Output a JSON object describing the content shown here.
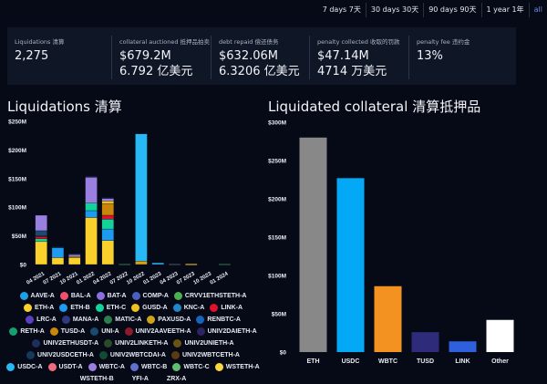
{
  "range_filter": {
    "options": [
      "7 days 7天",
      "30 days 30天",
      "90 days 90天",
      "1 year 1年",
      "all"
    ],
    "active": "all"
  },
  "stats": [
    {
      "label": "Liquidations 清算",
      "value": "2,275"
    },
    {
      "label": "collateral auctioned 抵押品拍卖",
      "value": "$679.2M 6.792 亿美元"
    },
    {
      "label": "debt repaid 偿还债务",
      "value": "$632.06M 6.3206 亿美元"
    },
    {
      "label": "penalty collected 收取的罚款",
      "value": "$47.14M 4714 万美元"
    },
    {
      "label": "penalty fee 违约金",
      "value": "13%"
    }
  ],
  "left_panel": {
    "title": "Liquidations 清算"
  },
  "right_panel": {
    "title": "Liquidated collateral 清算抵押品"
  },
  "chart_data": [
    {
      "type": "bar",
      "stacked": true,
      "title": "Liquidations 清算",
      "ylim": [
        0,
        250
      ],
      "yticks": [
        "$0",
        "$50M",
        "$100M",
        "$150M",
        "$200M",
        "$250M"
      ],
      "ytick_values": [
        0,
        50,
        100,
        150,
        200,
        250
      ],
      "categories": [
        "04 2021",
        "07 2021",
        "10 2021",
        "01 2022",
        "04 2022",
        "07 2022",
        "10 2022",
        "01 2023",
        "04 2023",
        "07 2023",
        "10 2023",
        "01 2024"
      ],
      "xtick_labels": [
        "04 2021",
        "07 2021",
        "10 2021",
        "01 2022",
        "04 2022",
        "07 2022",
        "10 2022",
        "01 2023",
        "04 2023",
        "07 2023",
        "10 2023",
        "01 2024"
      ],
      "series": [
        {
          "name": "ETH-A",
          "color": "#fad02c",
          "values": [
            40,
            12,
            12,
            82,
            42,
            0,
            0,
            0,
            0,
            1,
            0,
            0
          ]
        },
        {
          "name": "ETH-B",
          "color": "#1d9bf0",
          "values": [
            0,
            18,
            0,
            12,
            20,
            0,
            0,
            0,
            0,
            0,
            0,
            0
          ]
        },
        {
          "name": "ETH-C",
          "color": "#12d49a",
          "values": [
            5,
            0,
            0,
            13,
            17,
            0,
            0,
            0,
            0,
            0,
            0,
            0
          ]
        },
        {
          "name": "LINK-A",
          "color": "#e0112b",
          "values": [
            3,
            0,
            0,
            0,
            7,
            0,
            0,
            0,
            0,
            0,
            0,
            0
          ]
        },
        {
          "name": "UNIV2AAVEETH-A",
          "color": "#8b1a2a",
          "values": [
            2,
            0,
            0,
            0,
            0,
            0,
            0,
            0,
            0,
            0,
            0,
            0
          ]
        },
        {
          "name": "UNI-A",
          "color": "#1a4a6e",
          "values": [
            9,
            0,
            0,
            0,
            0,
            0,
            0,
            0,
            0,
            0,
            0,
            0
          ]
        },
        {
          "name": "TUSD-A",
          "color": "#c8860a",
          "values": [
            0,
            0,
            0,
            0,
            20,
            0,
            0,
            0,
            0,
            0,
            0,
            0
          ]
        },
        {
          "name": "PAXUSD-A",
          "color": "#d0a418",
          "values": [
            0,
            0,
            2,
            0,
            0,
            0,
            6,
            0,
            0,
            0,
            0,
            0
          ]
        },
        {
          "name": "GUSD-A",
          "color": "#f0c020",
          "values": [
            0,
            0,
            0,
            0,
            5,
            0,
            0,
            0,
            0,
            0,
            0,
            0
          ]
        },
        {
          "name": "WBTC-A",
          "color": "#9b7fe0",
          "values": [
            27,
            0,
            4,
            46,
            5,
            0,
            0,
            0,
            0,
            0,
            0,
            0
          ]
        },
        {
          "name": "USDC-A",
          "color": "#28b8f5",
          "values": [
            0,
            0,
            0,
            0,
            0,
            0,
            222,
            3,
            0,
            0,
            0,
            0
          ]
        },
        {
          "name": "MATIC-A",
          "color": "#2e7d4f",
          "values": [
            0,
            0,
            0,
            0,
            0,
            1,
            0,
            0,
            0,
            0,
            0,
            1
          ]
        },
        {
          "name": "WSTETH-B",
          "color": "#555a66",
          "values": [
            0,
            0,
            0,
            0,
            0,
            0,
            0,
            0,
            1,
            0,
            0,
            0
          ]
        },
        {
          "name": "UNIV2ETHUSDT-A",
          "color": "#1f2d5c",
          "values": [
            0,
            1,
            1,
            1,
            1,
            0,
            0,
            0,
            0,
            0,
            0,
            0
          ]
        }
      ],
      "legend": [
        {
          "name": "AAVE-A",
          "color": "#1ea0e8"
        },
        {
          "name": "BAL-A",
          "color": "#f0506e"
        },
        {
          "name": "BAT-A",
          "color": "#8a6fe0"
        },
        {
          "name": "COMP-A",
          "color": "#4a5fc0"
        },
        {
          "name": "CRVV1ETHSTETH-A",
          "color": "#4caf50"
        },
        {
          "name": "ETH-A",
          "color": "#fad02c"
        },
        {
          "name": "ETH-B",
          "color": "#1d9bf0"
        },
        {
          "name": "ETH-C",
          "color": "#12d49a"
        },
        {
          "name": "GUSD-A",
          "color": "#f0c020"
        },
        {
          "name": "KNC-A",
          "color": "#1e88c8"
        },
        {
          "name": "LINK-A",
          "color": "#e0112b"
        },
        {
          "name": "LRC-A",
          "color": "#5b3fc0"
        },
        {
          "name": "MANA-A",
          "color": "#2f3a80"
        },
        {
          "name": "MATIC-A",
          "color": "#2e7d4f"
        },
        {
          "name": "PAXUSD-A",
          "color": "#d0a418"
        },
        {
          "name": "RENBTC-A",
          "color": "#1565c0"
        },
        {
          "name": "RETH-A",
          "color": "#14a071"
        },
        {
          "name": "TUSD-A",
          "color": "#c8860a"
        },
        {
          "name": "UNI-A",
          "color": "#1a4a6e"
        },
        {
          "name": "UNIV2AAVEETH-A",
          "color": "#8b1a2a"
        },
        {
          "name": "UNIV2DAIETH-A",
          "color": "#2d2460"
        },
        {
          "name": "UNIV2ETHUSDT-A",
          "color": "#1f2d5c"
        },
        {
          "name": "UNIV2LINKETH-A",
          "color": "#2a4a2a"
        },
        {
          "name": "UNIV2UNIETH-A",
          "color": "#6b5314"
        },
        {
          "name": "UNIV2USDCETH-A",
          "color": "#143a5a"
        },
        {
          "name": "UNIV2WBTCDAI-A",
          "color": "#124a32"
        },
        {
          "name": "UNIV2WBTCETH-A",
          "color": "#5a3a10"
        },
        {
          "name": "USDC-A",
          "color": "#28b8f5"
        },
        {
          "name": "USDT-A",
          "color": "#f06b80"
        },
        {
          "name": "WBTC-A",
          "color": "#9b7fe0"
        },
        {
          "name": "WBTC-B",
          "color": "#6070d0"
        },
        {
          "name": "WBTC-C",
          "color": "#5fbf70"
        },
        {
          "name": "WSTETH-A",
          "color": "#fad641"
        },
        {
          "name": "WSTETH-B",
          "color": null
        },
        {
          "name": "YFI-A",
          "color": null
        },
        {
          "name": "ZRX-A",
          "color": null
        }
      ]
    },
    {
      "type": "bar",
      "title": "Liquidated collateral 清算抵押品",
      "ylim": [
        0,
        300
      ],
      "yticks": [
        "$0",
        "$50M",
        "$100M",
        "$150M",
        "$200M",
        "$250M",
        "$300M"
      ],
      "ytick_values": [
        0,
        50,
        100,
        150,
        200,
        250,
        300
      ],
      "categories": [
        "ETH",
        "USDC",
        "WBTC",
        "TUSD",
        "LINK",
        "Other"
      ],
      "values": [
        280,
        227,
        86,
        26,
        14,
        42
      ],
      "colors": [
        "#888888",
        "#03a9f4",
        "#f39220",
        "#2e2c7a",
        "#2e5fdc",
        "#ffffff"
      ]
    }
  ]
}
